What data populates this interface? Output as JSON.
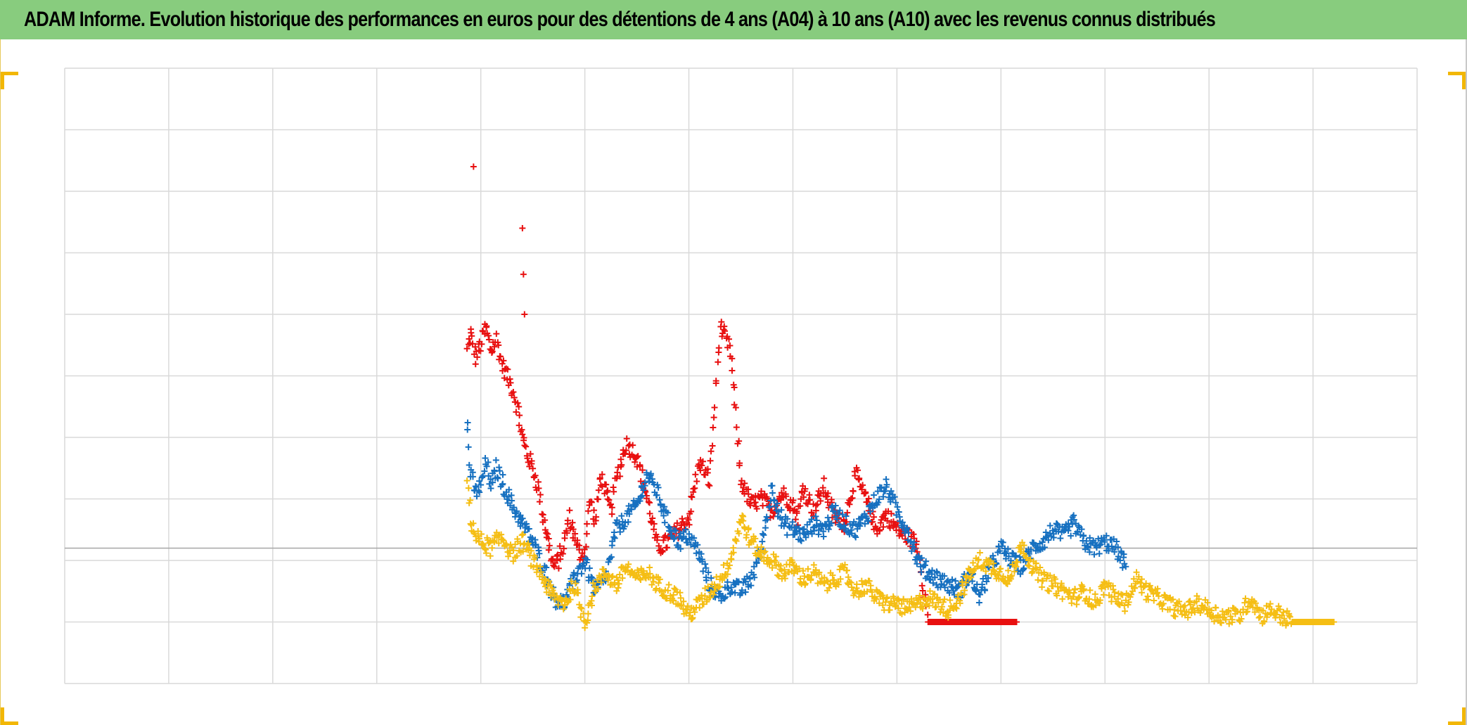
{
  "title": "ADAM Informe. Evolution historique des performances en euros pour des détentions de 4 ans (A04) à 10 ans (A10) avec les revenus connus distribués",
  "colors": {
    "header": "#88cc7e",
    "corner": "#f2b705",
    "grid": "#d9d9d9",
    "baseline": "#a6a6a6"
  },
  "chart_data": {
    "type": "scatter",
    "title": "ADAM Informe. Evolution historique des performances en euros pour des détentions de 4 ans (A04) à 10 ans (A10) avec les revenus connus distribués",
    "xlabel": "",
    "ylabel": "",
    "xlim": [
      0,
      13
    ],
    "ylim": [
      -2.2,
      7.8
    ],
    "baseline": 0,
    "grid": true,
    "legend": "none",
    "marker": "+",
    "series": [
      {
        "color": "#e81010",
        "x": [
          3.87,
          3.9,
          3.95,
          4.0,
          4.05,
          4.1,
          4.15,
          4.2,
          4.25,
          4.3,
          4.35,
          4.4,
          4.45,
          4.5,
          4.55,
          4.6,
          4.65,
          4.7,
          4.75,
          4.8,
          4.85,
          4.9,
          4.95,
          5.0,
          5.05,
          5.1,
          5.15,
          5.2,
          5.25,
          5.3,
          5.4,
          5.5,
          5.6,
          5.7,
          5.8,
          5.9,
          6.0,
          6.1,
          6.2,
          6.3,
          6.4,
          6.5,
          6.6,
          6.7,
          6.8,
          6.9,
          7.0,
          7.05,
          7.1,
          7.15,
          7.2,
          7.3,
          7.4,
          7.5,
          7.6,
          7.7,
          7.8,
          7.9,
          8.0,
          8.1,
          8.2,
          8.3,
          8.4,
          8.5,
          8.6,
          8.7,
          8.8,
          8.9,
          9.0,
          9.1,
          9.15
        ],
        "y": [
          3.2,
          3.5,
          3.1,
          3.3,
          3.6,
          3.2,
          3.4,
          3.0,
          2.8,
          2.6,
          2.3,
          1.8,
          1.5,
          1.3,
          1.0,
          0.5,
          0.1,
          -0.3,
          -0.2,
          0.1,
          0.5,
          0.2,
          -0.1,
          -0.05,
          0.8,
          0.4,
          1.2,
          0.9,
          0.6,
          1.1,
          1.7,
          1.5,
          0.8,
          0.0,
          0.1,
          0.3,
          0.5,
          1.4,
          1.1,
          3.6,
          3.2,
          1.1,
          0.7,
          0.8,
          0.6,
          0.9,
          0.7,
          0.5,
          1.0,
          0.8,
          0.6,
          1.0,
          0.5,
          0.4,
          1.2,
          0.8,
          0.3,
          0.55,
          0.3,
          0.2,
          0.05,
          -1.2,
          -1.2,
          -1.2,
          -1.2,
          -1.2,
          -1.2,
          -1.2,
          -1.2,
          -1.2,
          -1.2
        ],
        "outliers": [
          {
            "x": 3.93,
            "y": 6.2
          },
          {
            "x": 4.4,
            "y": 5.2
          },
          {
            "x": 4.41,
            "y": 4.45
          },
          {
            "x": 4.42,
            "y": 3.8
          }
        ]
      },
      {
        "color": "#1670c0",
        "x": [
          3.87,
          3.9,
          3.95,
          4.0,
          4.05,
          4.1,
          4.15,
          4.2,
          4.3,
          4.4,
          4.5,
          4.6,
          4.7,
          4.8,
          4.9,
          5.0,
          5.1,
          5.2,
          5.3,
          5.4,
          5.5,
          5.6,
          5.7,
          5.8,
          5.9,
          6.0,
          6.1,
          6.2,
          6.3,
          6.4,
          6.5,
          6.6,
          6.7,
          6.8,
          6.9,
          7.0,
          7.1,
          7.2,
          7.3,
          7.4,
          7.5,
          7.6,
          7.7,
          7.8,
          7.9,
          8.0,
          8.1,
          8.2,
          8.3,
          8.4,
          8.5,
          8.6,
          8.7,
          8.8,
          8.9,
          9.0,
          9.1,
          9.2,
          9.3,
          9.4,
          9.5,
          9.6,
          9.7,
          9.8,
          9.9,
          10.0,
          10.1,
          10.2
        ],
        "y": [
          2.1,
          1.2,
          0.9,
          1.0,
          1.4,
          1.0,
          1.3,
          1.1,
          0.7,
          0.4,
          0.1,
          -0.3,
          -0.8,
          -0.9,
          -0.5,
          -0.2,
          -0.7,
          -0.5,
          0.3,
          0.5,
          0.7,
          1.2,
          0.9,
          0.4,
          0.1,
          0.2,
          -0.1,
          -0.6,
          -0.8,
          -0.6,
          -0.7,
          -0.5,
          0.0,
          1.0,
          0.4,
          0.3,
          0.2,
          0.4,
          0.3,
          0.6,
          0.4,
          0.3,
          0.5,
          0.8,
          1.0,
          0.6,
          0.3,
          -0.2,
          -0.4,
          -0.5,
          -0.6,
          -0.7,
          -0.4,
          -0.8,
          -0.3,
          0.0,
          -0.2,
          -0.3,
          0.0,
          0.1,
          0.3,
          0.2,
          0.4,
          0.1,
          0.0,
          0.1,
          0.0,
          -0.3
        ]
      },
      {
        "color": "#f5be14",
        "x": [
          3.87,
          3.9,
          3.95,
          4.0,
          4.1,
          4.2,
          4.3,
          4.4,
          4.5,
          4.6,
          4.7,
          4.8,
          4.9,
          5.0,
          5.1,
          5.2,
          5.3,
          5.4,
          5.5,
          5.6,
          5.7,
          5.8,
          5.9,
          6.0,
          6.1,
          6.2,
          6.3,
          6.4,
          6.5,
          6.6,
          6.7,
          6.8,
          6.9,
          7.0,
          7.1,
          7.2,
          7.3,
          7.4,
          7.5,
          7.6,
          7.7,
          7.8,
          7.9,
          8.0,
          8.1,
          8.2,
          8.3,
          8.4,
          8.5,
          8.6,
          8.7,
          8.8,
          8.9,
          9.0,
          9.1,
          9.2,
          9.3,
          9.4,
          9.5,
          9.6,
          9.7,
          9.8,
          9.9,
          10.0,
          10.1,
          10.2,
          10.3,
          10.4,
          10.5,
          10.6,
          10.7,
          10.8,
          10.9,
          11.0,
          11.1,
          11.2,
          11.3,
          11.4,
          11.5,
          11.6,
          11.7,
          11.8,
          11.9,
          12.0,
          12.1,
          12.2
        ],
        "y": [
          1.1,
          0.5,
          0.2,
          0.1,
          0.0,
          0.2,
          -0.1,
          0.1,
          -0.2,
          -0.5,
          -0.8,
          -0.9,
          -0.6,
          -1.2,
          -0.6,
          -0.4,
          -0.6,
          -0.3,
          -0.5,
          -0.4,
          -0.6,
          -0.7,
          -0.8,
          -1.1,
          -0.9,
          -0.7,
          -0.5,
          -0.2,
          0.5,
          0.1,
          -0.1,
          -0.2,
          -0.4,
          -0.3,
          -0.5,
          -0.4,
          -0.6,
          -0.5,
          -0.4,
          -0.7,
          -0.6,
          -0.8,
          -0.9,
          -0.9,
          -1.0,
          -0.9,
          -0.8,
          -0.9,
          -1.0,
          -0.8,
          -0.4,
          -0.2,
          -0.3,
          -0.4,
          -0.5,
          0.1,
          -0.3,
          -0.5,
          -0.6,
          -0.7,
          -0.8,
          -0.7,
          -0.9,
          -0.6,
          -0.8,
          -0.9,
          -0.5,
          -0.7,
          -0.8,
          -0.9,
          -1.0,
          -1.0,
          -0.9,
          -1.0,
          -1.1,
          -1.1,
          -1.1,
          -0.8,
          -1.1,
          -1.0,
          -1.1,
          -1.2,
          -1.2,
          -1.2,
          -1.2,
          -1.2
        ]
      }
    ]
  }
}
